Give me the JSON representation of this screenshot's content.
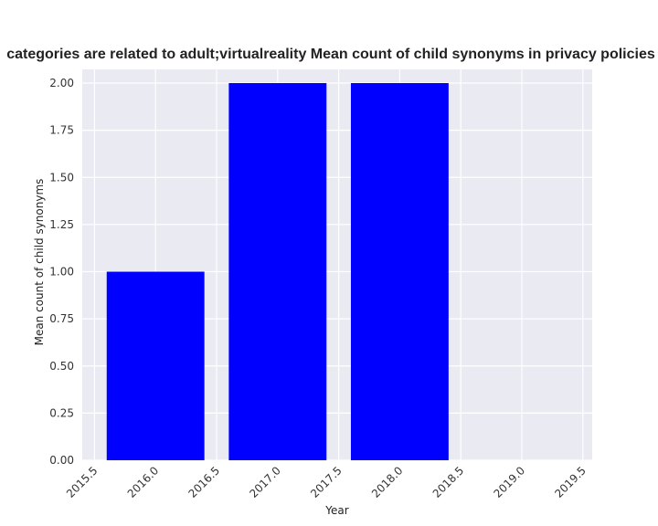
{
  "chart_data": {
    "type": "bar",
    "title": "categories are related to adult;virtualreality Mean count of child synonyms in privacy policies",
    "xlabel": "Year",
    "ylabel": "Mean count of child synonyms",
    "x": [
      2016,
      2017,
      2018
    ],
    "values": [
      1.0,
      2.0,
      2.0
    ],
    "bar_width": 0.8,
    "xlim": [
      2015.5,
      2019.5
    ],
    "ylim": [
      0,
      2.0
    ],
    "xticks": [
      "2015.5",
      "2016.0",
      "2016.5",
      "2017.0",
      "2017.5",
      "2018.0",
      "2018.5",
      "2019.0",
      "2019.5"
    ],
    "yticks": [
      "0.00",
      "0.25",
      "0.50",
      "0.75",
      "1.00",
      "1.25",
      "1.50",
      "1.75",
      "2.00"
    ],
    "bar_color": "#0000ff",
    "background_color": "#eaeaf2",
    "grid": true,
    "legend": false
  }
}
